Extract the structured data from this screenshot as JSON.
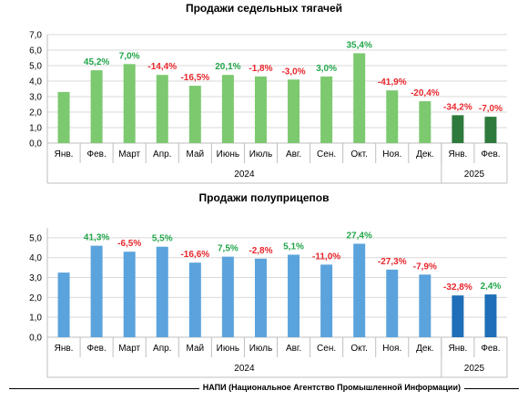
{
  "chart_data": [
    {
      "type": "bar",
      "title": "Продажи седельных тягачей",
      "categories": [
        "Янв.",
        "Фев.",
        "Март",
        "Апр.",
        "Май",
        "Июнь",
        "Июль",
        "Авг.",
        "Сен.",
        "Окт.",
        "Ноя.",
        "Дек.",
        "Янв.",
        "Фев."
      ],
      "year_groups": [
        {
          "label": "2024",
          "count": 12
        },
        {
          "label": "2025",
          "count": 2
        }
      ],
      "values": [
        3.3,
        4.7,
        5.1,
        4.4,
        3.7,
        4.4,
        4.3,
        4.1,
        4.3,
        5.8,
        3.4,
        2.7,
        1.8,
        1.7
      ],
      "data_labels": [
        "",
        "45,2%",
        "7,0%",
        "-14,4%",
        "-16,5%",
        "20,1%",
        "-1,8%",
        "-3,0%",
        "3,0%",
        "35,4%",
        "-41,9%",
        "-20,4%",
        "-34,2%",
        "-7,0%"
      ],
      "yticks": [
        "0,0",
        "1,0",
        "2,0",
        "3,0",
        "4,0",
        "5,0",
        "6,0",
        "7,0"
      ],
      "ylim": [
        0,
        7
      ],
      "grid": true,
      "colors": {
        "bar_2024": "#7cc96f",
        "bar_2025": "#2e7a3c",
        "positive": "#21a54a",
        "negative": "#e8262c"
      }
    },
    {
      "type": "bar",
      "title": "Продажи полуприцепов",
      "categories": [
        "Янв.",
        "Фев.",
        "Март",
        "Апр.",
        "Май",
        "Июнь",
        "Июль",
        "Авг.",
        "Сен.",
        "Окт.",
        "Ноя.",
        "Дек.",
        "Янв.",
        "Фев."
      ],
      "year_groups": [
        {
          "label": "2024",
          "count": 12
        },
        {
          "label": "2025",
          "count": 2
        }
      ],
      "values": [
        3.25,
        4.6,
        4.3,
        4.55,
        3.75,
        4.05,
        3.95,
        4.15,
        3.65,
        4.7,
        3.4,
        3.15,
        2.1,
        2.15
      ],
      "data_labels": [
        "",
        "41,3%",
        "-6,5%",
        "5,5%",
        "-16,6%",
        "7,5%",
        "-2,8%",
        "5,1%",
        "-11,0%",
        "27,4%",
        "-27,3%",
        "-7,9%",
        "-32,8%",
        "2,4%"
      ],
      "yticks": [
        "0,0",
        "1,0",
        "2,0",
        "3,0",
        "4,0",
        "5,0"
      ],
      "ylim": [
        0,
        5.5
      ],
      "grid": true,
      "colors": {
        "bar_2024": "#5ba3dc",
        "bar_2025": "#1e6fb8",
        "positive": "#21a54a",
        "negative": "#e8262c"
      }
    }
  ],
  "footer": {
    "source": "НАПИ (Национальное Агентство Промышленной Информации)"
  }
}
